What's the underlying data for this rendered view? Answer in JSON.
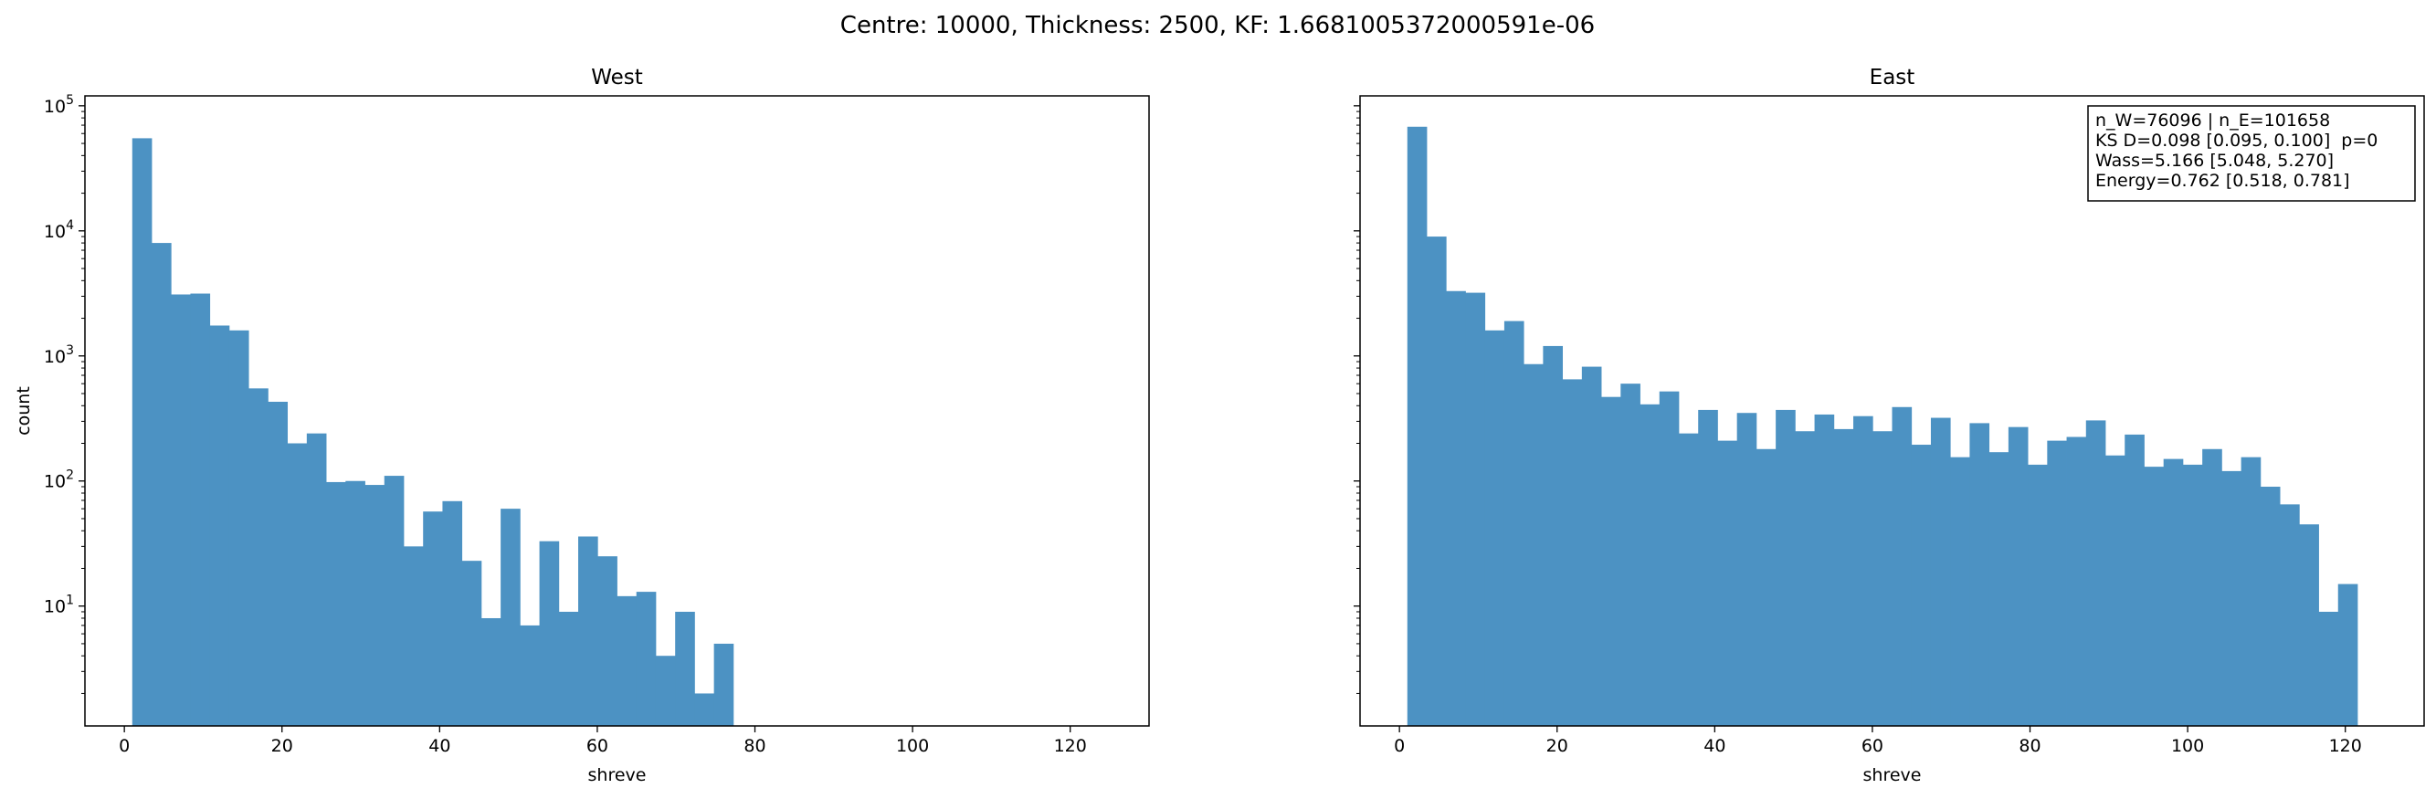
{
  "figure": {
    "suptitle": "Centre: 10000, Thickness: 2500, KF: 1.6681005372000591e-06"
  },
  "colors": {
    "bar": "#4c92c3",
    "axis": "#000000",
    "background": "#ffffff"
  },
  "chart_data": [
    {
      "type": "bar",
      "title": "West",
      "xlabel": "shreve",
      "ylabel": "count",
      "yscale": "log",
      "xlim": [
        -5,
        130
      ],
      "ylim": [
        1.1,
        120000
      ],
      "grid": false,
      "x_ticks": [
        0,
        20,
        40,
        60,
        80,
        100,
        120
      ],
      "y_ticks": [
        {
          "value": 10,
          "label": "10^1"
        },
        {
          "value": 100,
          "label": "10^2"
        },
        {
          "value": 1000,
          "label": "10^3"
        },
        {
          "value": 10000,
          "label": "10^4"
        },
        {
          "value": 100000,
          "label": "10^5"
        }
      ],
      "bin_start": 1,
      "bin_width": 2.46,
      "values": [
        55000,
        8000,
        3100,
        3150,
        1750,
        1600,
        550,
        430,
        200,
        240,
        98,
        100,
        93,
        110,
        30,
        57,
        69,
        23,
        8,
        60,
        7,
        33,
        9,
        36,
        25,
        12,
        13,
        4,
        9,
        2,
        5,
        0,
        0,
        0,
        0,
        0,
        0,
        0,
        0,
        0,
        0,
        0,
        0,
        0,
        0,
        0,
        0,
        0,
        0,
        0
      ]
    },
    {
      "type": "bar",
      "title": "East",
      "xlabel": "shreve",
      "ylabel": "",
      "yscale": "log",
      "xlim": [
        -5,
        130
      ],
      "ylim": [
        1.1,
        120000
      ],
      "grid": false,
      "x_ticks": [
        0,
        20,
        40,
        60,
        80,
        100,
        120
      ],
      "bin_start": 1,
      "bin_width": 2.46,
      "values": [
        68000,
        9000,
        3300,
        3200,
        1600,
        1900,
        860,
        1200,
        650,
        820,
        470,
        600,
        410,
        520,
        240,
        370,
        210,
        350,
        180,
        370,
        250,
        340,
        260,
        330,
        250,
        390,
        195,
        320,
        155,
        290,
        170,
        270,
        135,
        210,
        225,
        305,
        160,
        235,
        130,
        150,
        135,
        180,
        120,
        155,
        90,
        65,
        45,
        9,
        15
      ],
      "annotation": [
        "n_W=76096 | n_E=101658",
        "KS D=0.098 [0.095, 0.100]  p=0",
        "Wass=5.166 [5.048, 5.270]",
        "Energy=0.762 [0.518, 0.781]"
      ],
      "annotation_placement": "top-right"
    }
  ]
}
